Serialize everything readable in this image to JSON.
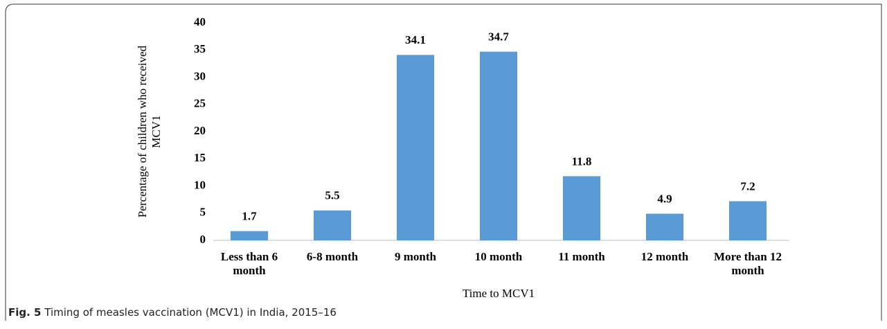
{
  "chart_data": {
    "type": "bar",
    "categories": [
      "Less than 6 month",
      "6-8 month",
      "9 month",
      "10 month",
      "11 month",
      "12 month",
      "More than 12 month"
    ],
    "values": [
      1.7,
      5.5,
      34.1,
      34.7,
      11.8,
      4.9,
      7.2
    ],
    "color": "#5b9bd5",
    "ylim": [
      0,
      40
    ],
    "yticks": [
      0,
      5,
      10,
      15,
      20,
      25,
      30,
      35,
      40
    ],
    "ylabel": [
      "Percentage of children who received",
      "MCV1"
    ],
    "xlabel": "Time to MCV1",
    "grid": false
  },
  "caption": {
    "label": "Fig. 5",
    "text": "Timing of measles vaccination (MCV1) in India, 2015–16"
  }
}
